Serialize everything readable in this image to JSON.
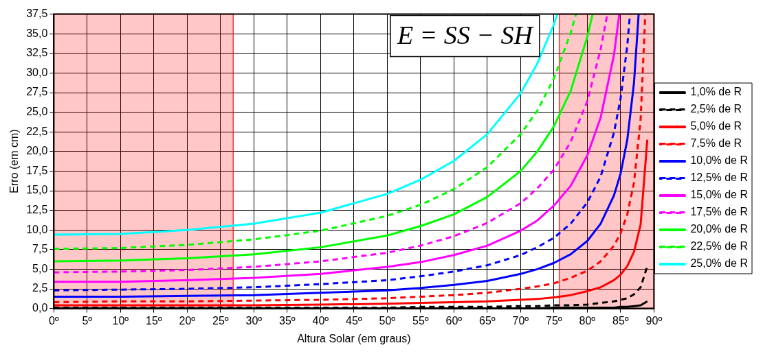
{
  "chart_data": {
    "type": "line",
    "xlabel": "Altura Solar (em graus)",
    "ylabel": "Erro (em cm)",
    "annotations": [
      "E = SS − SH"
    ],
    "xlim": [
      0,
      90
    ],
    "xticks": [
      {
        "value": 0,
        "label": "0º"
      },
      {
        "value": 5,
        "label": "5º"
      },
      {
        "value": 10,
        "label": "10º"
      },
      {
        "value": 15,
        "label": "15º"
      },
      {
        "value": 20,
        "label": "20º"
      },
      {
        "value": 25,
        "label": "25º"
      },
      {
        "value": 30,
        "label": "30º"
      },
      {
        "value": 35,
        "label": "35º"
      },
      {
        "value": 40,
        "label": "40º"
      },
      {
        "value": 45,
        "label": "45º"
      },
      {
        "value": 50,
        "label": "50º"
      },
      {
        "value": 55,
        "label": "55º"
      },
      {
        "value": 60,
        "label": "60º"
      },
      {
        "value": 65,
        "label": "65º"
      },
      {
        "value": 70,
        "label": "70º"
      },
      {
        "value": 75,
        "label": "75º"
      },
      {
        "value": 80,
        "label": "80º"
      },
      {
        "value": 85,
        "label": "85º"
      },
      {
        "value": 90,
        "label": "90º"
      }
    ],
    "ylim": [
      0,
      37.5
    ],
    "yticks": [
      {
        "value": 0,
        "label": "0,0"
      },
      {
        "value": 2.5,
        "label": "2,5"
      },
      {
        "value": 5,
        "label": "5,0"
      },
      {
        "value": 7.5,
        "label": "7,5"
      },
      {
        "value": 10,
        "label": "10,0"
      },
      {
        "value": 12.5,
        "label": "12,5"
      },
      {
        "value": 15,
        "label": "15,0"
      },
      {
        "value": 17.5,
        "label": "17,5"
      },
      {
        "value": 20,
        "label": "20,0"
      },
      {
        "value": 22.5,
        "label": "22,5"
      },
      {
        "value": 25,
        "label": "25,0"
      },
      {
        "value": 27.5,
        "label": "27,5"
      },
      {
        "value": 30,
        "label": "30,0"
      },
      {
        "value": 32.5,
        "label": "32,5"
      },
      {
        "value": 35,
        "label": "35,0"
      },
      {
        "value": 37.5,
        "label": "37,5"
      }
    ],
    "grid": true,
    "legend": "right",
    "marker": "none",
    "bands": [
      {
        "axis": "x",
        "from": 0,
        "to": 26.9,
        "color": "#ff0000"
      },
      {
        "axis": "x",
        "from": 75.8,
        "to": 90,
        "color": "#ff0000"
      }
    ],
    "series": [
      {
        "name": "1,0% de R",
        "color": "#000000",
        "line_style": "solid",
        "x": [
          0,
          10,
          20,
          30,
          40,
          50,
          55,
          60,
          65,
          70,
          72.5,
          75,
          77.5,
          80,
          82,
          84,
          85,
          86,
          87,
          88,
          89
        ],
        "values": [
          0,
          0,
          0,
          0,
          0,
          0,
          0,
          0,
          0,
          0,
          0,
          0.1,
          0.1,
          0.1,
          0.1,
          0.1,
          0.2,
          0.2,
          0.3,
          0.4,
          0.9
        ]
      },
      {
        "name": "2,5% de R",
        "color": "#000000",
        "line_style": "dashed",
        "x": [
          0,
          10,
          20,
          30,
          40,
          50,
          55,
          60,
          65,
          70,
          72.5,
          75,
          77.5,
          80,
          82,
          84,
          85,
          86,
          87,
          88,
          89
        ],
        "values": [
          0.1,
          0.1,
          0.1,
          0.1,
          0.1,
          0.1,
          0.2,
          0.2,
          0.2,
          0.3,
          0.3,
          0.4,
          0.4,
          0.5,
          0.7,
          0.9,
          1.1,
          1.3,
          1.8,
          2.7,
          5.4
        ]
      },
      {
        "name": "5,0% de R",
        "color": "#ff0000",
        "line_style": "solid",
        "x": [
          0,
          10,
          20,
          30,
          40,
          50,
          55,
          60,
          65,
          70,
          72.5,
          75,
          77.5,
          80,
          82,
          84,
          85,
          86,
          87,
          88,
          89
        ],
        "values": [
          0.4,
          0.4,
          0.4,
          0.4,
          0.5,
          0.6,
          0.7,
          0.8,
          0.9,
          1.1,
          1.2,
          1.4,
          1.7,
          2.2,
          2.7,
          3.6,
          4.3,
          5.4,
          7.2,
          10.7,
          21.5
        ]
      },
      {
        "name": "7,5% de R",
        "color": "#ff0000",
        "line_style": "dashed",
        "x": [
          0,
          10,
          20,
          30,
          40,
          50,
          55,
          60,
          65,
          70,
          72.5,
          75,
          77.5,
          80,
          82,
          84,
          85,
          86,
          87,
          88,
          88.7
        ],
        "values": [
          0.8,
          0.9,
          0.9,
          1.0,
          1.1,
          1.3,
          1.5,
          1.7,
          2.0,
          2.5,
          2.8,
          3.2,
          3.9,
          4.8,
          6.0,
          8.0,
          9.6,
          12.0,
          16.0,
          24.1,
          37.5
        ]
      },
      {
        "name": "10,0% de R",
        "color": "#0000ff",
        "line_style": "solid",
        "x": [
          0,
          10,
          20,
          30,
          40,
          50,
          55,
          60,
          65,
          70,
          72.5,
          75,
          77.5,
          80,
          82,
          84,
          85,
          86,
          87,
          87.7
        ],
        "values": [
          1.5,
          1.5,
          1.6,
          1.7,
          2.0,
          2.3,
          2.6,
          3.0,
          3.5,
          4.4,
          5.0,
          5.8,
          6.9,
          8.6,
          10.8,
          14.4,
          17.2,
          21.5,
          28.7,
          37.5
        ]
      },
      {
        "name": "12,5% de R",
        "color": "#0000ff",
        "line_style": "dashed",
        "x": [
          0,
          10,
          20,
          30,
          40,
          50,
          55,
          60,
          65,
          70,
          72.5,
          75,
          77.5,
          80,
          82,
          84,
          85,
          86,
          86.4
        ],
        "values": [
          2.3,
          2.4,
          2.5,
          2.7,
          3.1,
          3.6,
          4.1,
          4.7,
          5.5,
          6.8,
          7.8,
          9.0,
          10.8,
          13.5,
          16.8,
          22.4,
          26.8,
          33.5,
          37.5
        ]
      },
      {
        "name": "15,0% de R",
        "color": "#ff00ff",
        "line_style": "solid",
        "x": [
          0,
          10,
          20,
          30,
          40,
          50,
          55,
          60,
          65,
          70,
          72.5,
          75,
          77.5,
          80,
          82,
          84,
          84.8
        ],
        "values": [
          3.4,
          3.4,
          3.6,
          3.9,
          4.4,
          5.3,
          5.9,
          6.8,
          8.0,
          9.9,
          11.2,
          13.1,
          15.6,
          19.5,
          24.3,
          32.3,
          37.5
        ]
      },
      {
        "name": "17,5% de R",
        "color": "#ff00ff",
        "line_style": "dashed",
        "x": [
          0,
          10,
          20,
          30,
          40,
          50,
          55,
          60,
          65,
          70,
          72.5,
          75,
          77.5,
          80,
          82,
          83
        ],
        "values": [
          4.6,
          4.7,
          4.9,
          5.3,
          6.0,
          7.1,
          8.0,
          9.2,
          10.9,
          13.4,
          15.3,
          17.7,
          21.2,
          26.4,
          33.0,
          37.5
        ]
      },
      {
        "name": "20,0% de R",
        "color": "#00ff00",
        "line_style": "solid",
        "x": [
          0,
          10,
          20,
          30,
          40,
          50,
          55,
          60,
          65,
          70,
          72.5,
          75,
          77.5,
          80,
          80.8
        ],
        "values": [
          6.0,
          6.1,
          6.4,
          6.9,
          7.8,
          9.3,
          10.5,
          12.0,
          14.2,
          17.5,
          20.0,
          23.2,
          27.7,
          34.6,
          37.5
        ]
      },
      {
        "name": "22,5% de R",
        "color": "#00ff00",
        "line_style": "dashed",
        "x": [
          0,
          10,
          20,
          30,
          40,
          50,
          55,
          60,
          65,
          70,
          72.5,
          75,
          77.5,
          78.3
        ],
        "values": [
          7.6,
          7.7,
          8.1,
          8.8,
          9.9,
          11.8,
          13.2,
          15.2,
          18.0,
          22.2,
          25.2,
          29.3,
          35.1,
          37.5
        ]
      },
      {
        "name": "25,0% de R",
        "color": "#00ffff",
        "line_style": "solid",
        "x": [
          0,
          10,
          20,
          30,
          40,
          50,
          55,
          60,
          65,
          70,
          72.5,
          75,
          75.5
        ],
        "values": [
          9.4,
          9.5,
          10.0,
          10.8,
          12.2,
          14.6,
          16.4,
          18.8,
          22.2,
          27.4,
          31.2,
          36.2,
          37.5
        ]
      }
    ]
  }
}
